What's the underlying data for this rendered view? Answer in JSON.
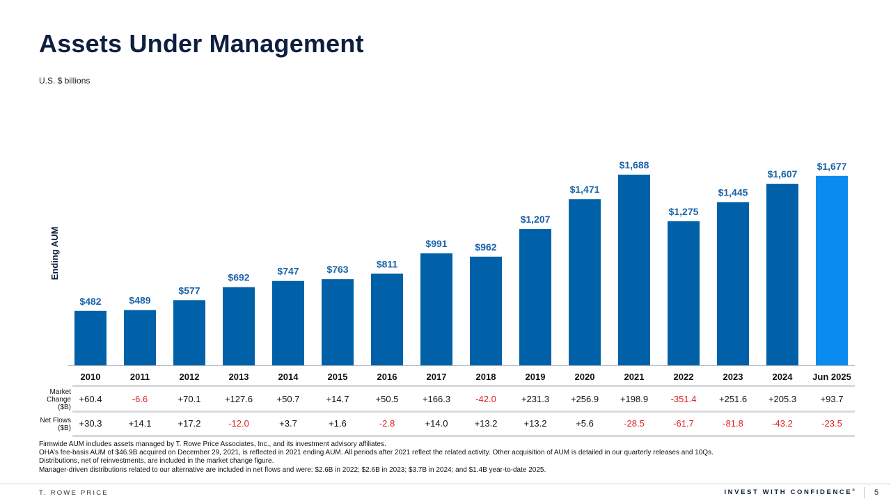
{
  "header": {
    "title": "Assets Under Management",
    "subtitle": "U.S. $ billions"
  },
  "chart_data": {
    "type": "bar",
    "title": "Assets Under Management",
    "subtitle": "U.S. $ billions",
    "ylabel": "Ending AUM",
    "xlabel": "",
    "ylim": [
      0,
      1700
    ],
    "grid": false,
    "categories": [
      "2010",
      "2011",
      "2012",
      "2013",
      "2014",
      "2015",
      "2016",
      "2017",
      "2018",
      "2019",
      "2020",
      "2021",
      "2022",
      "2023",
      "2024",
      "Jun 2025"
    ],
    "values": [
      482,
      489,
      577,
      692,
      747,
      763,
      811,
      991,
      962,
      1207,
      1471,
      1688,
      1275,
      1445,
      1607,
      1677
    ],
    "value_labels": [
      "$482",
      "$489",
      "$577",
      "$692",
      "$747",
      "$763",
      "$811",
      "$991",
      "$962",
      "$1,207",
      "$1,471",
      "$1,688",
      "$1,275",
      "$1,445",
      "$1,607",
      "$1,677"
    ],
    "colors": {
      "bar": "#0061a8",
      "highlight": "#0a8bf0",
      "label": "#1b63a8"
    },
    "highlight_index": 15
  },
  "table": {
    "rows": [
      {
        "label": "Market Change ($B)",
        "label_lines": [
          "Market",
          "Change",
          "($B)"
        ],
        "values": [
          "+60.4",
          "-6.6",
          "+70.1",
          "+127.6",
          "+50.7",
          "+14.7",
          "+50.5",
          "+166.3",
          "-42.0",
          "+231.3",
          "+256.9",
          "+198.9",
          "-351.4",
          "+251.6",
          "+205.3",
          "+93.7"
        ]
      },
      {
        "label": "Net Flows ($B)",
        "label_lines": [
          "Net Flows",
          "($B)"
        ],
        "values": [
          "+30.3",
          "+14.1",
          "+17.2",
          "-12.0",
          "+3.7",
          "+1.6",
          "-2.8",
          "+14.0",
          "+13.2",
          "+13.2",
          "+5.6",
          "-28.5",
          "-61.7",
          "-81.8",
          "-43.2",
          "-23.5"
        ]
      }
    ],
    "colors": {
      "positive": "#111111",
      "negative": "#e02020"
    }
  },
  "footnotes": [
    "Firmwide AUM includes assets managed by T. Rowe Price Associates, Inc., and its investment advisory affiliates.",
    "OHA’s fee-basis AUM of $46.9B acquired on December 29, 2021, is reflected in 2021 ending AUM. All periods after 2021 reflect the related activity. Other acquisition of AUM is detailed in our quarterly releases and 10Qs.",
    "Distributions, net of reinvestments, are included in the market change figure.",
    "Manager-driven distributions related to our alternative are included in net flows and were: $2.6B in 2022; $2.6B in 2023;  $3.7B in 2024; and $1.4B year-to-date 2025."
  ],
  "footer": {
    "brand": "T. ROWE PRICE",
    "tagline": "INVEST WITH CONFIDENCE",
    "tagline_mark": "®",
    "page_number": "5"
  }
}
